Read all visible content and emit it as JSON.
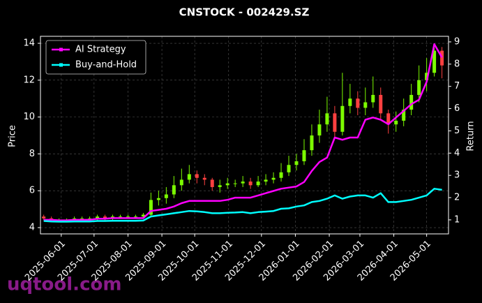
{
  "chart_data": {
    "type": "candlestick_with_returns",
    "title": "CNSTOCK - 002429.SZ",
    "ylabel": "Price",
    "y2label": "Return",
    "watermark": "uqtool.com",
    "xlim": [
      "2025-05-13",
      "2026-05-21"
    ],
    "xticks": [
      "2025-06-01",
      "2025-07-01",
      "2025-08-01",
      "2025-09-01",
      "2025-10-01",
      "2025-11-01",
      "2025-12-01",
      "2026-01-01",
      "2026-02-01",
      "2026-03-01",
      "2026-04-01",
      "2026-05-01"
    ],
    "ylim": [
      3.66,
      14.38
    ],
    "yticks": [
      4,
      6,
      8,
      10,
      12,
      14
    ],
    "y2lim": [
      0.37,
      9.25
    ],
    "y2ticks": [
      1,
      2,
      3,
      4,
      5,
      6,
      7,
      8,
      9
    ],
    "grid": true,
    "legend_position": "upper-left",
    "up_color": "#7cfc00",
    "down_color": "#ff4040",
    "x": [
      "2025-05-16",
      "2025-05-23",
      "2025-05-30",
      "2025-06-06",
      "2025-06-13",
      "2025-06-20",
      "2025-06-27",
      "2025-07-04",
      "2025-07-11",
      "2025-07-18",
      "2025-07-25",
      "2025-08-01",
      "2025-08-08",
      "2025-08-15",
      "2025-08-22",
      "2025-08-29",
      "2025-09-05",
      "2025-09-12",
      "2025-09-19",
      "2025-09-26",
      "2025-10-03",
      "2025-10-10",
      "2025-10-17",
      "2025-10-24",
      "2025-10-31",
      "2025-11-07",
      "2025-11-14",
      "2025-11-21",
      "2025-11-28",
      "2025-12-05",
      "2025-12-12",
      "2025-12-19",
      "2025-12-26",
      "2026-01-02",
      "2026-01-09",
      "2026-01-16",
      "2026-01-23",
      "2026-01-30",
      "2026-02-06",
      "2026-02-13",
      "2026-02-20",
      "2026-02-27",
      "2026-03-06",
      "2026-03-13",
      "2026-03-20",
      "2026-03-27",
      "2026-04-03",
      "2026-04-10",
      "2026-04-17",
      "2026-04-24",
      "2026-05-01",
      "2026-05-08",
      "2026-05-15"
    ],
    "open": [
      4.6,
      4.5,
      4.4,
      4.4,
      4.4,
      4.5,
      4.5,
      4.5,
      4.6,
      4.5,
      4.6,
      4.6,
      4.6,
      4.6,
      4.7,
      5.5,
      5.6,
      5.8,
      6.3,
      6.6,
      6.9,
      6.7,
      6.6,
      6.2,
      6.3,
      6.4,
      6.4,
      6.5,
      6.3,
      6.5,
      6.6,
      6.7,
      7.0,
      7.4,
      7.6,
      8.2,
      9.0,
      9.6,
      10.2,
      9.2,
      10.6,
      11.0,
      10.5,
      10.8,
      11.2,
      10.2,
      9.6,
      9.8,
      10.4,
      11.2,
      12.0,
      12.4,
      13.6
    ],
    "high": [
      4.7,
      4.6,
      4.5,
      4.5,
      4.6,
      4.6,
      4.6,
      4.7,
      4.7,
      4.7,
      4.7,
      4.7,
      4.7,
      4.8,
      5.9,
      6.0,
      6.2,
      6.8,
      7.2,
      7.4,
      7.1,
      6.9,
      6.7,
      6.6,
      6.7,
      6.6,
      6.8,
      6.7,
      6.8,
      6.9,
      7.0,
      7.5,
      7.9,
      8.0,
      8.8,
      9.6,
      10.4,
      11.1,
      10.6,
      12.4,
      11.8,
      11.4,
      11.6,
      12.2,
      11.6,
      10.4,
      10.3,
      11.0,
      11.8,
      12.8,
      13.2,
      13.9,
      13.8
    ],
    "low": [
      4.4,
      4.3,
      4.3,
      4.3,
      4.3,
      4.4,
      4.4,
      4.4,
      4.4,
      4.4,
      4.5,
      4.5,
      4.5,
      4.5,
      4.6,
      5.2,
      5.3,
      5.6,
      6.0,
      6.4,
      6.4,
      6.3,
      6.0,
      5.9,
      6.1,
      6.2,
      6.2,
      6.1,
      6.2,
      6.3,
      6.4,
      6.5,
      6.8,
      7.1,
      7.4,
      7.9,
      8.6,
      9.2,
      8.8,
      9.0,
      10.2,
      10.1,
      10.1,
      10.5,
      9.9,
      9.1,
      9.2,
      9.5,
      10.1,
      10.8,
      11.4,
      12.2,
      12.1
    ],
    "close": [
      4.5,
      4.4,
      4.4,
      4.4,
      4.5,
      4.5,
      4.5,
      4.6,
      4.5,
      4.6,
      4.6,
      4.6,
      4.6,
      4.7,
      5.5,
      5.6,
      5.8,
      6.3,
      6.6,
      6.9,
      6.7,
      6.6,
      6.2,
      6.3,
      6.4,
      6.4,
      6.5,
      6.3,
      6.5,
      6.6,
      6.7,
      7.0,
      7.4,
      7.6,
      8.2,
      9.0,
      9.6,
      10.2,
      9.2,
      10.6,
      11.0,
      10.5,
      10.8,
      11.2,
      10.2,
      9.6,
      9.8,
      10.4,
      11.2,
      12.0,
      12.4,
      13.6,
      12.8
    ],
    "series": [
      {
        "name": "AI Strategy",
        "color": "#ff00ff",
        "axis": "y2",
        "values": [
          1.0,
          1.0,
          0.98,
          0.98,
          1.0,
          1.0,
          1.0,
          1.05,
          1.05,
          1.08,
          1.08,
          1.08,
          1.08,
          1.08,
          1.4,
          1.45,
          1.5,
          1.6,
          1.75,
          1.85,
          1.85,
          1.85,
          1.85,
          1.85,
          1.9,
          2.0,
          2.0,
          2.0,
          2.1,
          2.2,
          2.3,
          2.4,
          2.45,
          2.5,
          2.7,
          3.2,
          3.6,
          3.8,
          4.7,
          4.6,
          4.7,
          4.7,
          5.5,
          5.6,
          5.5,
          5.3,
          5.6,
          5.9,
          6.2,
          6.4,
          7.2,
          8.9,
          8.3
        ]
      },
      {
        "name": "Buy-and-Hold",
        "color": "#00ffff",
        "axis": "y2",
        "values": [
          0.95,
          0.93,
          0.92,
          0.92,
          0.93,
          0.93,
          0.93,
          0.95,
          0.95,
          0.96,
          0.96,
          0.96,
          0.96,
          0.97,
          1.15,
          1.2,
          1.25,
          1.3,
          1.35,
          1.4,
          1.38,
          1.35,
          1.3,
          1.3,
          1.32,
          1.33,
          1.35,
          1.3,
          1.35,
          1.37,
          1.4,
          1.5,
          1.52,
          1.6,
          1.65,
          1.8,
          1.85,
          1.95,
          2.1,
          1.95,
          2.05,
          2.1,
          2.1,
          2.0,
          2.2,
          1.8,
          1.8,
          1.85,
          1.9,
          2.0,
          2.1,
          2.4,
          2.35
        ]
      }
    ]
  }
}
